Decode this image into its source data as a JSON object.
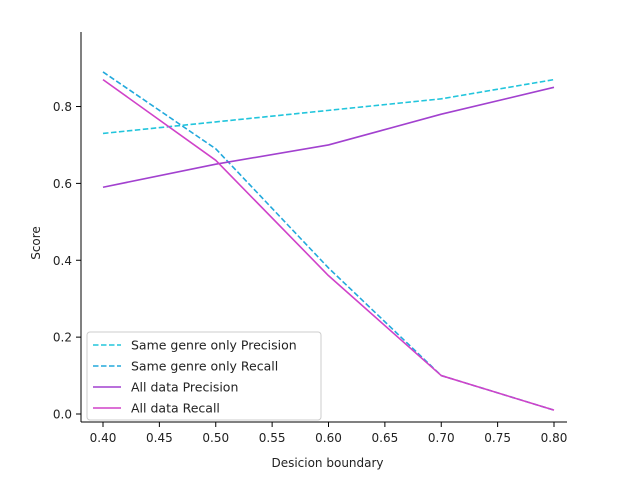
{
  "chart_data": {
    "type": "line",
    "title": "",
    "xlabel": "Desicion boundary",
    "ylabel": "Score",
    "x": [
      0.4,
      0.5,
      0.6,
      0.7,
      0.8
    ],
    "xlim": [
      0.4,
      0.8
    ],
    "ylim": [
      0.0,
      0.92
    ],
    "x_ticks": [
      "0.40",
      "0.45",
      "0.50",
      "0.55",
      "0.60",
      "0.65",
      "0.70",
      "0.75",
      "0.80"
    ],
    "y_ticks": [
      "0.0",
      "0.2",
      "0.4",
      "0.6",
      "0.8"
    ],
    "grid": false,
    "legend_position": "lower-left",
    "series": [
      {
        "name": "Same genre only Precision",
        "values": [
          0.73,
          0.76,
          0.79,
          0.82,
          0.87
        ],
        "color": "#22c5dc",
        "style": "dashed"
      },
      {
        "name": "Same genre only Recall",
        "values": [
          0.89,
          0.69,
          0.38,
          0.1,
          0.01
        ],
        "color": "#22a9dc",
        "style": "dashed"
      },
      {
        "name": "All data Precision",
        "values": [
          0.59,
          0.65,
          0.7,
          0.78,
          0.85
        ],
        "color": "#a241cf",
        "style": "solid"
      },
      {
        "name": "All data Recall",
        "values": [
          0.87,
          0.66,
          0.36,
          0.1,
          0.01
        ],
        "color": "#d042c9",
        "style": "solid"
      }
    ]
  }
}
